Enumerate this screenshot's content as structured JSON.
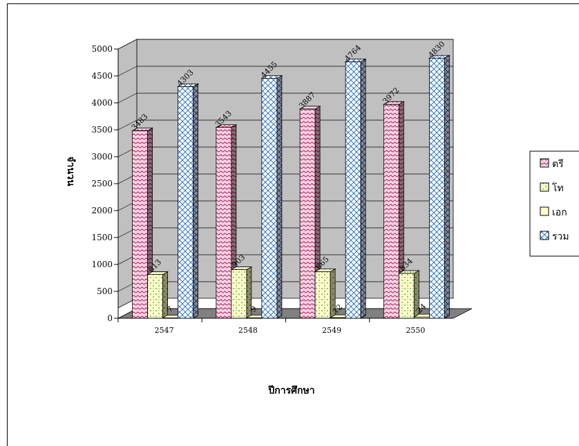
{
  "chart_data": {
    "type": "bar",
    "title": "",
    "xlabel": "ปีการศึกษา",
    "ylabel": "จำนวน",
    "categories": [
      "2547",
      "2548",
      "2549",
      "2550"
    ],
    "series": [
      {
        "name": "ตรี",
        "values": [
          3483,
          3543,
          3887,
          3972
        ],
        "color": "#f7c6d9",
        "pattern": "wave-pink"
      },
      {
        "name": "โท",
        "values": [
          813,
          903,
          865,
          834
        ],
        "color": "#ffffcc",
        "pattern": "dots-green"
      },
      {
        "name": "เอก",
        "values": [
          7,
          9,
          12,
          24
        ],
        "color": "#ffffcc",
        "pattern": "plain-yellow"
      },
      {
        "name": "รวม",
        "values": [
          4303,
          4455,
          4764,
          4830
        ],
        "color": "#ffffff",
        "pattern": "diamond-blue"
      }
    ],
    "ylim": [
      0,
      5000
    ],
    "yticks": [
      0,
      500,
      1000,
      1500,
      2000,
      2500,
      3000,
      3500,
      4000,
      4500,
      5000
    ],
    "grid": true,
    "legend": "right",
    "three_d": true
  }
}
